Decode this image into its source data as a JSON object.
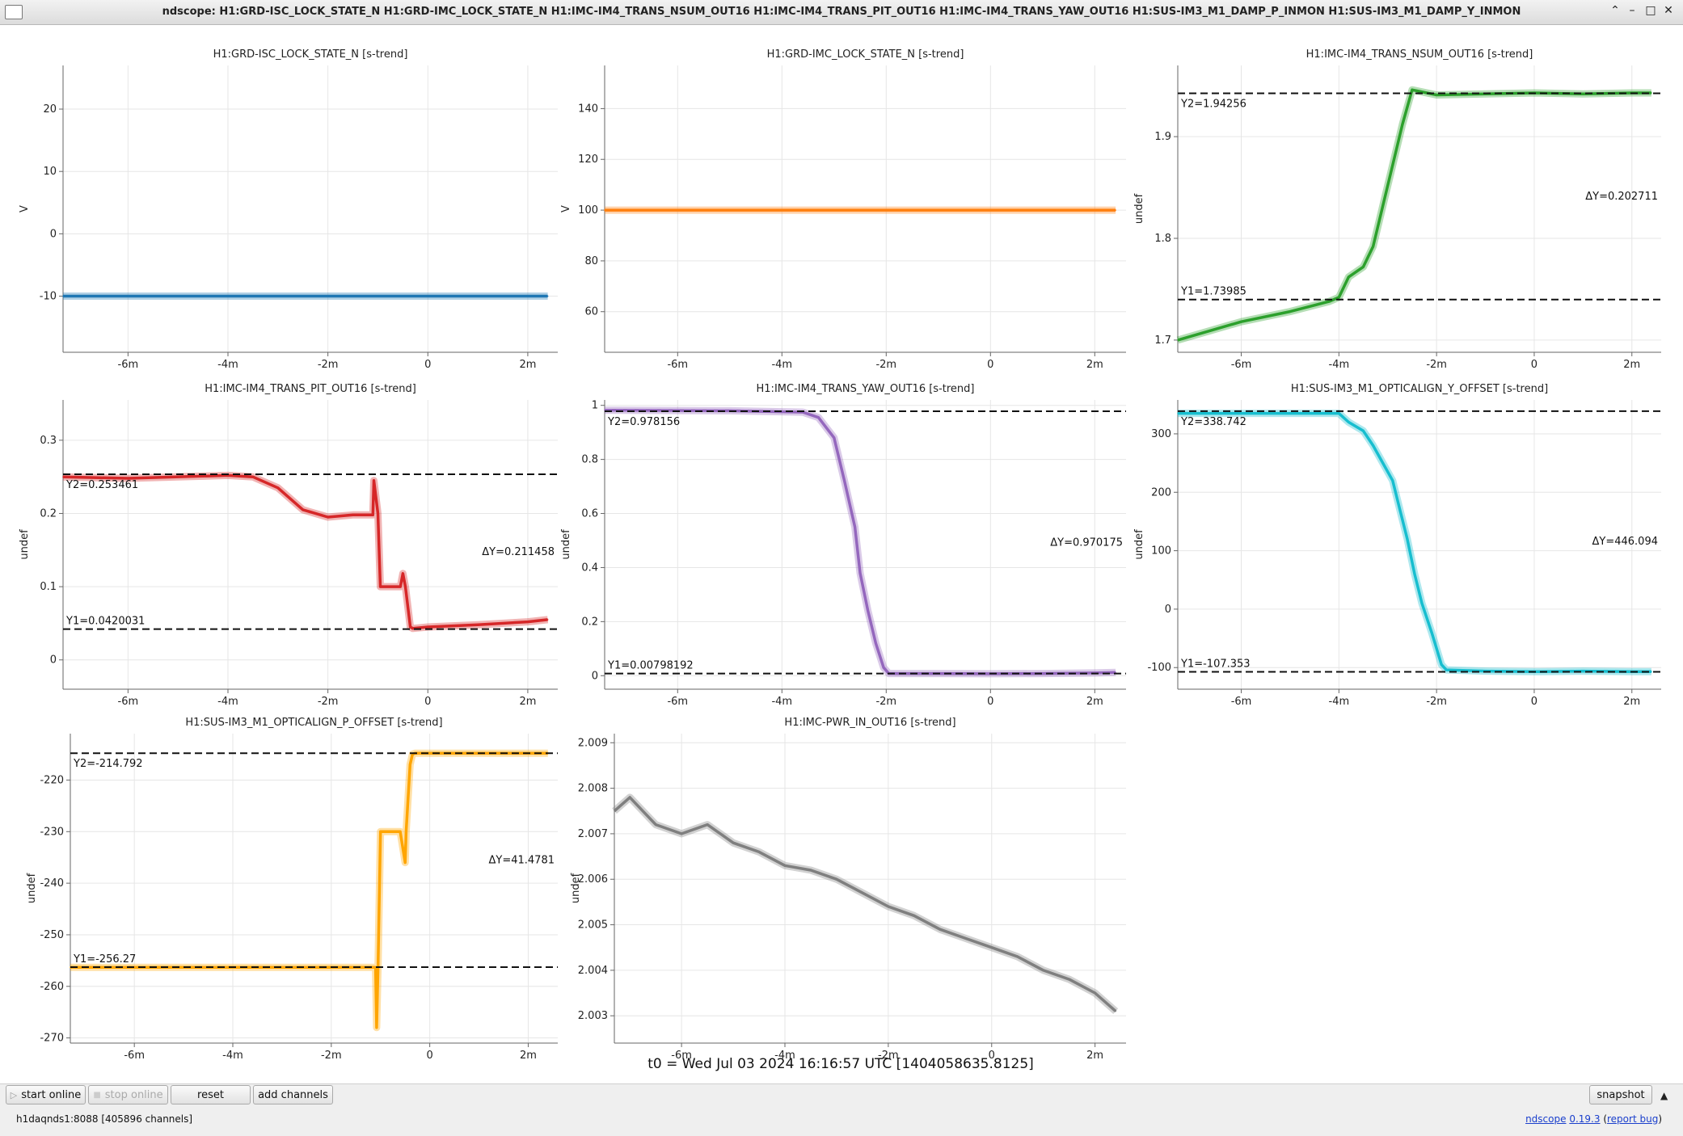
{
  "window": {
    "title": "ndscope: H1:GRD-ISC_LOCK_STATE_N H1:GRD-IMC_LOCK_STATE_N H1:IMC-IM4_TRANS_NSUM_OUT16 H1:IMC-IM4_TRANS_PIT_OUT16 H1:IMC-IM4_TRANS_YAW_OUT16 H1:SUS-IM3_M1_DAMP_P_INMON H1:SUS-IM3_M1_DAMP_Y_INMON",
    "controls": [
      "⌃",
      "–",
      "□",
      "✕"
    ]
  },
  "t0_label": "t0 = Wed Jul 03 2024 16:16:57 UTC [1404058635.8125]",
  "buttons": {
    "start_online": "start online",
    "stop_online": "stop online",
    "reset": "reset",
    "add_channels": "add channels",
    "snapshot": "snapshot"
  },
  "status_text": "h1daqnds1:8088  [405896 channels]",
  "links": {
    "app": "ndscope",
    "version": "0.19.3",
    "report": "report bug"
  },
  "colors": {
    "blue": "#1f77b4",
    "orange": "#ff7f0e",
    "green": "#2ca02c",
    "red": "#d62728",
    "purple": "#9467bd",
    "cyan": "#17becf",
    "amber": "#ffa500",
    "gray": "#7f7f7f"
  },
  "chart_data": [
    {
      "type": "line",
      "title": "H1:GRD-ISC_LOCK_STATE_N [s-trend]",
      "ylabel": "V",
      "color": "blue",
      "xlim": [
        -7.3,
        2.6
      ],
      "ylim": [
        -19,
        27
      ],
      "xticks": [
        -6,
        -4,
        -2,
        0,
        2
      ],
      "xticklabels": [
        "-6m",
        "-4m",
        "-2m",
        "0",
        "2m"
      ],
      "yticks": [
        -10,
        0,
        10,
        20
      ],
      "yticklabels": [
        "-10",
        "0",
        "10",
        "20"
      ],
      "x": [
        -7.3,
        2.4
      ],
      "y": [
        -10,
        -10
      ]
    },
    {
      "type": "line",
      "title": "H1:GRD-IMC_LOCK_STATE_N [s-trend]",
      "ylabel": "V",
      "color": "orange",
      "xlim": [
        -7.4,
        2.6
      ],
      "ylim": [
        44,
        157
      ],
      "xticks": [
        -6,
        -4,
        -2,
        0,
        2
      ],
      "xticklabels": [
        "-6m",
        "-4m",
        "-2m",
        "0",
        "2m"
      ],
      "yticks": [
        60,
        80,
        100,
        120,
        140
      ],
      "yticklabels": [
        "60",
        "80",
        "100",
        "120",
        "140"
      ],
      "x": [
        -7.4,
        2.4
      ],
      "y": [
        100,
        100
      ]
    },
    {
      "type": "line",
      "title": "H1:IMC-IM4_TRANS_NSUM_OUT16 [s-trend]",
      "ylabel": "undef",
      "color": "green",
      "xlim": [
        -7.3,
        2.6
      ],
      "ylim": [
        1.688,
        1.97
      ],
      "xticks": [
        -6,
        -4,
        -2,
        0,
        2
      ],
      "xticklabels": [
        "-6m",
        "-4m",
        "-2m",
        "0",
        "2m"
      ],
      "yticks": [
        1.7,
        1.8,
        1.9
      ],
      "yticklabels": [
        "1.7",
        "1.8",
        "1.9"
      ],
      "x": [
        -7.3,
        -6,
        -5,
        -4.2,
        -4,
        -3.8,
        -3.5,
        -3.3,
        -3.1,
        -2.9,
        -2.7,
        -2.5,
        -2,
        -1,
        0,
        1,
        2,
        2.4
      ],
      "y": [
        1.7,
        1.718,
        1.728,
        1.738,
        1.742,
        1.762,
        1.772,
        1.792,
        1.832,
        1.872,
        1.912,
        1.946,
        1.941,
        1.942,
        1.943,
        1.942,
        1.943,
        1.943
      ],
      "cursors": {
        "y1": 1.73985,
        "y2": 1.94256,
        "y1_label": "Y1=1.73985",
        "y2_label": "Y2=1.94256",
        "dy_label": "ΔY=0.202711"
      }
    },
    {
      "type": "line",
      "title": "H1:IMC-IM4_TRANS_PIT_OUT16 [s-trend]",
      "ylabel": "undef",
      "color": "red",
      "xlim": [
        -7.3,
        2.6
      ],
      "ylim": [
        -0.04,
        0.355
      ],
      "xticks": [
        -6,
        -4,
        -2,
        0,
        2
      ],
      "xticklabels": [
        "-6m",
        "-4m",
        "-2m",
        "0",
        "2m"
      ],
      "yticks": [
        0,
        0.1,
        0.2,
        0.3
      ],
      "yticklabels": [
        "0",
        "0.1",
        "0.2",
        "0.3"
      ],
      "x": [
        -7.3,
        -6,
        -4,
        -3.5,
        -3,
        -2.5,
        -2,
        -1.5,
        -1.1,
        -1.08,
        -1.0,
        -0.95,
        -0.55,
        -0.5,
        -0.45,
        -0.35,
        -0.3,
        0,
        1,
        2,
        2.4
      ],
      "y": [
        0.25,
        0.248,
        0.252,
        0.25,
        0.235,
        0.205,
        0.195,
        0.198,
        0.198,
        0.245,
        0.2,
        0.1,
        0.1,
        0.118,
        0.1,
        0.045,
        0.043,
        0.045,
        0.048,
        0.052,
        0.055
      ],
      "cursors": {
        "y1": 0.0420031,
        "y2": 0.253461,
        "y1_label": "Y1=0.0420031",
        "y2_label": "Y2=0.253461",
        "dy_label": "ΔY=0.211458"
      }
    },
    {
      "type": "line",
      "title": "H1:IMC-IM4_TRANS_YAW_OUT16 [s-trend]",
      "ylabel": "undef",
      "color": "purple",
      "xlim": [
        -7.4,
        2.6
      ],
      "ylim": [
        -0.05,
        1.02
      ],
      "xticks": [
        -6,
        -4,
        -2,
        0,
        2
      ],
      "xticklabels": [
        "-6m",
        "-4m",
        "-2m",
        "0",
        "2m"
      ],
      "yticks": [
        0,
        0.2,
        0.4,
        0.6,
        0.8,
        1
      ],
      "yticklabels": [
        "0",
        "0.2",
        "0.4",
        "0.6",
        "0.8",
        "1"
      ],
      "x": [
        -7.4,
        -5,
        -3.6,
        -3.3,
        -3.0,
        -2.8,
        -2.6,
        -2.5,
        -2.35,
        -2.2,
        -2.05,
        -1.95,
        -1,
        0,
        1,
        2,
        2.4
      ],
      "y": [
        0.982,
        0.98,
        0.975,
        0.955,
        0.88,
        0.72,
        0.55,
        0.38,
        0.24,
        0.12,
        0.03,
        0.008,
        0.008,
        0.007,
        0.008,
        0.01,
        0.012
      ],
      "cursors": {
        "y1": 0.00798192,
        "y2": 0.978156,
        "y1_label": "Y1=0.00798192",
        "y2_label": "Y2=0.978156",
        "dy_label": "ΔY=0.970175"
      }
    },
    {
      "type": "line",
      "title": "H1:SUS-IM3_M1_OPTICALIGN_Y_OFFSET [s-trend]",
      "ylabel": "undef",
      "color": "cyan",
      "xlim": [
        -7.3,
        2.6
      ],
      "ylim": [
        -137,
        358
      ],
      "xticks": [
        -6,
        -4,
        -2,
        0,
        2
      ],
      "xticklabels": [
        "-6m",
        "-4m",
        "-2m",
        "0",
        "2m"
      ],
      "yticks": [
        -100,
        0,
        100,
        200,
        300
      ],
      "yticklabels": [
        "-100",
        "0",
        "100",
        "200",
        "300"
      ],
      "x": [
        -7.3,
        -5,
        -4.0,
        -3.8,
        -3.5,
        -3.3,
        -3.1,
        -2.9,
        -2.75,
        -2.6,
        -2.45,
        -2.3,
        -2.1,
        -1.9,
        -1.8,
        -1,
        0,
        1,
        2,
        2.4
      ],
      "y": [
        335,
        335,
        335,
        320,
        305,
        280,
        250,
        220,
        170,
        120,
        60,
        10,
        -40,
        -95,
        -104,
        -106,
        -107,
        -106,
        -107,
        -107
      ],
      "cursors": {
        "y1": -107.353,
        "y2": 338.742,
        "y1_label": "Y1=-107.353",
        "y2_label": "Y2=338.742",
        "dy_label": "ΔY=446.094"
      }
    },
    {
      "type": "line",
      "title": "H1:SUS-IM3_M1_OPTICALIGN_P_OFFSET [s-trend]",
      "ylabel": "undef",
      "color": "amber",
      "xlim": [
        -7.3,
        2.6
      ],
      "ylim": [
        -271,
        -211
      ],
      "xticks": [
        -6,
        -4,
        -2,
        0,
        2
      ],
      "xticklabels": [
        "-6m",
        "-4m",
        "-2m",
        "0",
        "2m"
      ],
      "yticks": [
        -270,
        -260,
        -250,
        -240,
        -230,
        -220
      ],
      "yticklabels": [
        "-270",
        "-260",
        "-250",
        "-240",
        "-230",
        "-220"
      ],
      "x": [
        -7.3,
        -4,
        -1.1,
        -1.08,
        -1.05,
        -1.0,
        -0.95,
        -0.6,
        -0.5,
        -0.48,
        -0.4,
        -0.35,
        -0.3,
        0,
        1,
        2,
        2.4
      ],
      "y": [
        -256.3,
        -256.3,
        -256.3,
        -268,
        -256,
        -230,
        -230,
        -230,
        -236,
        -230,
        -217,
        -215,
        -214.8,
        -214.8,
        -214.8,
        -214.8,
        -214.8
      ],
      "cursors": {
        "y1": -256.27,
        "y2": -214.792,
        "y1_label": "Y1=-256.27",
        "y2_label": "Y2=-214.792",
        "dy_label": "ΔY=41.4781"
      }
    },
    {
      "type": "line",
      "title": "H1:IMC-PWR_IN_OUT16 [s-trend]",
      "ylabel": "undef",
      "color": "gray",
      "xlim": [
        -7.3,
        2.6
      ],
      "ylim": [
        2.0024,
        2.0092
      ],
      "xticks": [
        -6,
        -4,
        -2,
        0,
        2
      ],
      "xticklabels": [
        "-6m",
        "-4m",
        "-2m",
        "0",
        "2m"
      ],
      "yticks": [
        2.003,
        2.004,
        2.005,
        2.006,
        2.007,
        2.008,
        2.009
      ],
      "yticklabels": [
        "2.003",
        "2.004",
        "2.005",
        "2.006",
        "2.007",
        "2.008",
        "2.009"
      ],
      "x": [
        -7.3,
        -7,
        -6.5,
        -6,
        -5.5,
        -5,
        -4.5,
        -4,
        -3.5,
        -3,
        -2.5,
        -2,
        -1.5,
        -1,
        -0.5,
        0,
        0.5,
        1,
        1.5,
        2,
        2.4
      ],
      "y": [
        2.0075,
        2.0078,
        2.0072,
        2.007,
        2.0072,
        2.0068,
        2.0066,
        2.0063,
        2.0062,
        2.006,
        2.0057,
        2.0054,
        2.0052,
        2.0049,
        2.0047,
        2.0045,
        2.0043,
        2.004,
        2.0038,
        2.0035,
        2.0031
      ]
    }
  ]
}
